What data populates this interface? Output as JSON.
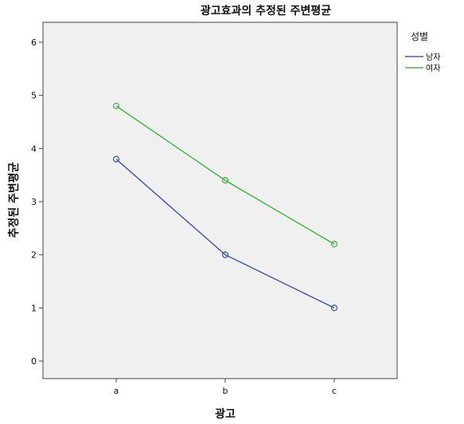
{
  "chart_data": {
    "type": "line",
    "title": "광고효과의 추정된 주변평균",
    "xlabel": "광고",
    "ylabel": "추정된 주변평균",
    "categories": [
      "a",
      "b",
      "c"
    ],
    "ylim": [
      0,
      6
    ],
    "yticks": [
      0,
      1,
      2,
      3,
      4,
      5,
      6
    ],
    "grid": false,
    "legend": {
      "title": "성별",
      "placement": "top-right-outside"
    },
    "series": [
      {
        "name": "남자",
        "color": "#4a5cab",
        "values": [
          3.8,
          2.0,
          1.0
        ]
      },
      {
        "name": "여자",
        "color": "#44bb44",
        "values": [
          4.8,
          3.4,
          2.2
        ]
      }
    ],
    "plot_background": "#f0f0f0"
  }
}
